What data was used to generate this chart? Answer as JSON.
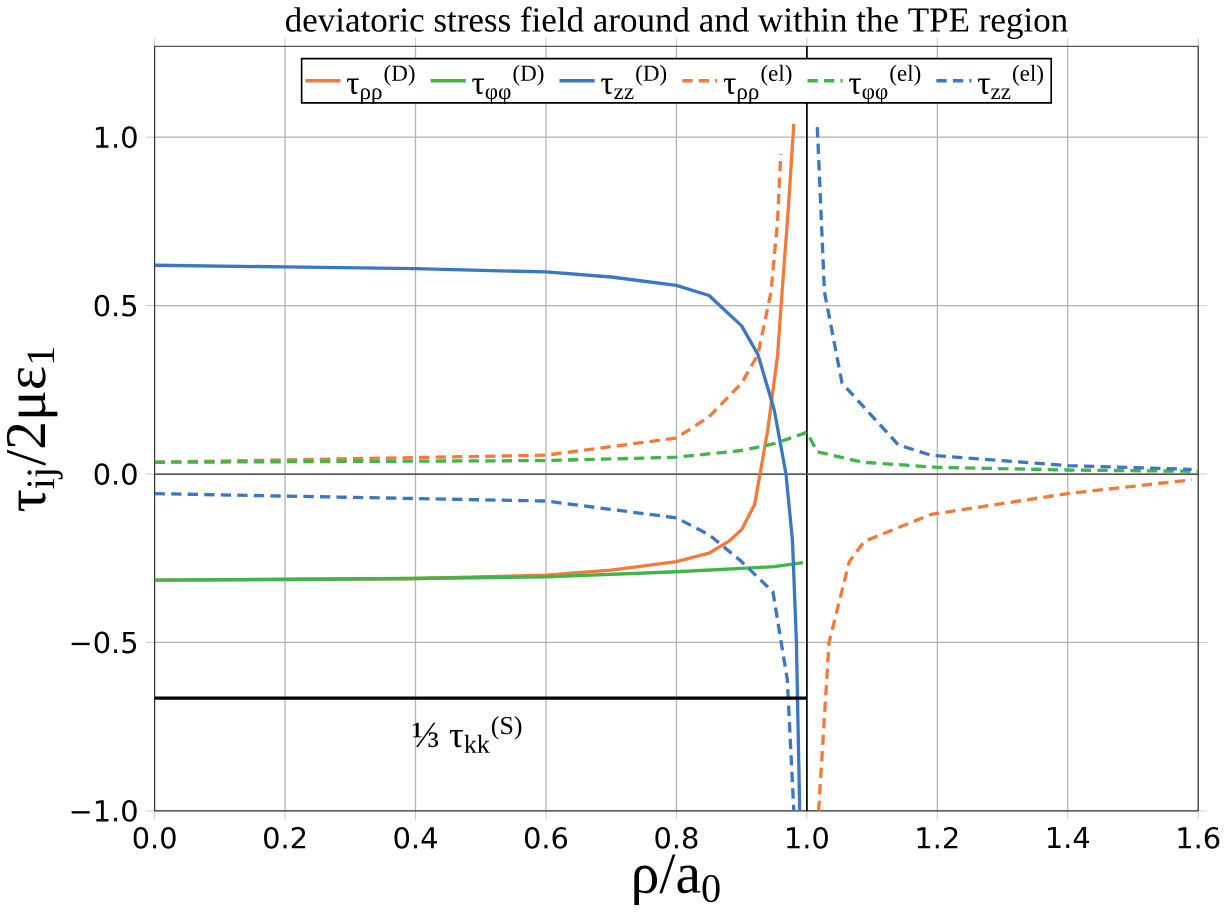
{
  "chart_data": {
    "type": "line",
    "title": "deviatoric stress field around and within the TPE region",
    "xlabel": "ρ/a$_{0}$",
    "ylabel": "τ$_{ij}$/2με$_{1}$",
    "xlim": [
      0,
      1.6
    ],
    "ylim": [
      -1,
      1.27
    ],
    "xticks": [
      {
        "value": 0,
        "label": "0.0"
      },
      {
        "value": 0.2,
        "label": "0.2"
      },
      {
        "value": 0.4,
        "label": "0.4"
      },
      {
        "value": 0.6,
        "label": "0.6"
      },
      {
        "value": 0.8,
        "label": "0.8"
      },
      {
        "value": 1.0,
        "label": "1.0"
      },
      {
        "value": 1.2,
        "label": "1.2"
      },
      {
        "value": 1.4,
        "label": "1.4"
      },
      {
        "value": 1.6,
        "label": "1.6"
      }
    ],
    "yticks": [
      {
        "value": -1,
        "label": "−1.0"
      },
      {
        "value": -0.5,
        "label": "−0.5"
      },
      {
        "value": 0,
        "label": "0.0"
      },
      {
        "value": 0.5,
        "label": "0.5"
      },
      {
        "value": 1.0,
        "label": "1.0"
      }
    ],
    "grid": true,
    "legend": "top",
    "series": [
      {
        "name": "τ$_{ρρ}$$^{(D)}$",
        "color": "#f47a3a",
        "line_style": "solid",
        "x": [
          0,
          0.2,
          0.4,
          0.6,
          0.7,
          0.8,
          0.85,
          0.88,
          0.9,
          0.92,
          0.94,
          0.955,
          0.962,
          0.972,
          0.98
        ],
        "values": [
          -0.315,
          -0.313,
          -0.31,
          -0.3,
          -0.285,
          -0.26,
          -0.235,
          -0.2,
          -0.165,
          -0.09,
          0.13,
          0.35,
          0.54,
          0.8,
          1.04
        ]
      },
      {
        "name": "τ$_{φφ}$$^{(D)}$",
        "color": "#3fb54a",
        "line_style": "solid",
        "x": [
          0,
          0.4,
          0.6,
          0.8,
          0.9,
          0.95,
          0.994
        ],
        "values": [
          -0.315,
          -0.31,
          -0.305,
          -0.29,
          -0.28,
          -0.275,
          -0.263
        ]
      },
      {
        "name": "τ$_{zz}$$^{(D)}$",
        "color": "#3a78c4",
        "line_style": "solid",
        "x": [
          0,
          0.2,
          0.4,
          0.6,
          0.7,
          0.8,
          0.85,
          0.9,
          0.925,
          0.95,
          0.968,
          0.978,
          0.984,
          0.989
        ],
        "values": [
          0.62,
          0.615,
          0.61,
          0.6,
          0.585,
          0.56,
          0.53,
          0.44,
          0.355,
          0.19,
          0,
          -0.2,
          -0.5,
          -1.0
        ]
      },
      {
        "name": "τ$_{ρρ}$$^{(el)}$",
        "color": "#f47a3a",
        "line_style": "dashed",
        "x": [
          0,
          0.6,
          0.8,
          0.85,
          0.9,
          0.925,
          0.945,
          0.955,
          0.96,
          0.99,
          1.018,
          1.034,
          1.065,
          1.088,
          1.19,
          1.4,
          1.59
        ],
        "values": [
          0.035,
          0.056,
          0.107,
          0.17,
          0.27,
          0.355,
          0.54,
          0.75,
          0.95,
          null,
          -1.0,
          -0.5,
          -0.26,
          -0.2,
          -0.12,
          -0.058,
          -0.017
        ]
      },
      {
        "name": "τ$_{φφ}$$^{(el)}$",
        "color": "#3fb54a",
        "line_style": "dashed",
        "x": [
          0,
          0.6,
          0.8,
          0.9,
          0.95,
          1.0,
          1.016,
          1.086,
          1.2,
          1.4,
          1.6
        ],
        "values": [
          0.035,
          0.04,
          0.05,
          0.07,
          0.09,
          0.124,
          0.066,
          0.035,
          0.02,
          0.012,
          0.008
        ]
      },
      {
        "name": "τ$_{zz}$$^{(el)}$",
        "color": "#3a78c4",
        "line_style": "dashed",
        "x": [
          0,
          0.6,
          0.8,
          0.85,
          0.9,
          0.948,
          0.97,
          0.98,
          1.0,
          1.016,
          1.027,
          1.054,
          1.14,
          1.19,
          1.4,
          1.59
        ],
        "values": [
          -0.058,
          -0.08,
          -0.13,
          -0.18,
          -0.26,
          -0.35,
          -0.61,
          -1.0,
          null,
          1.03,
          0.54,
          0.27,
          0.087,
          0.056,
          0.025,
          0.014
        ]
      },
      {
        "color": "#000000",
        "line_style": "solid",
        "x": [
          0,
          1.0
        ],
        "values": [
          -0.665,
          -0.665
        ]
      }
    ],
    "ref_lines": [
      {
        "axis": "x",
        "value": 1.0,
        "color": "#000000"
      },
      {
        "axis": "y",
        "value": 0,
        "color": "#555555"
      }
    ],
    "annotations": [
      "⅓ τ$_{kk}$$^{(S)}$"
    ]
  }
}
